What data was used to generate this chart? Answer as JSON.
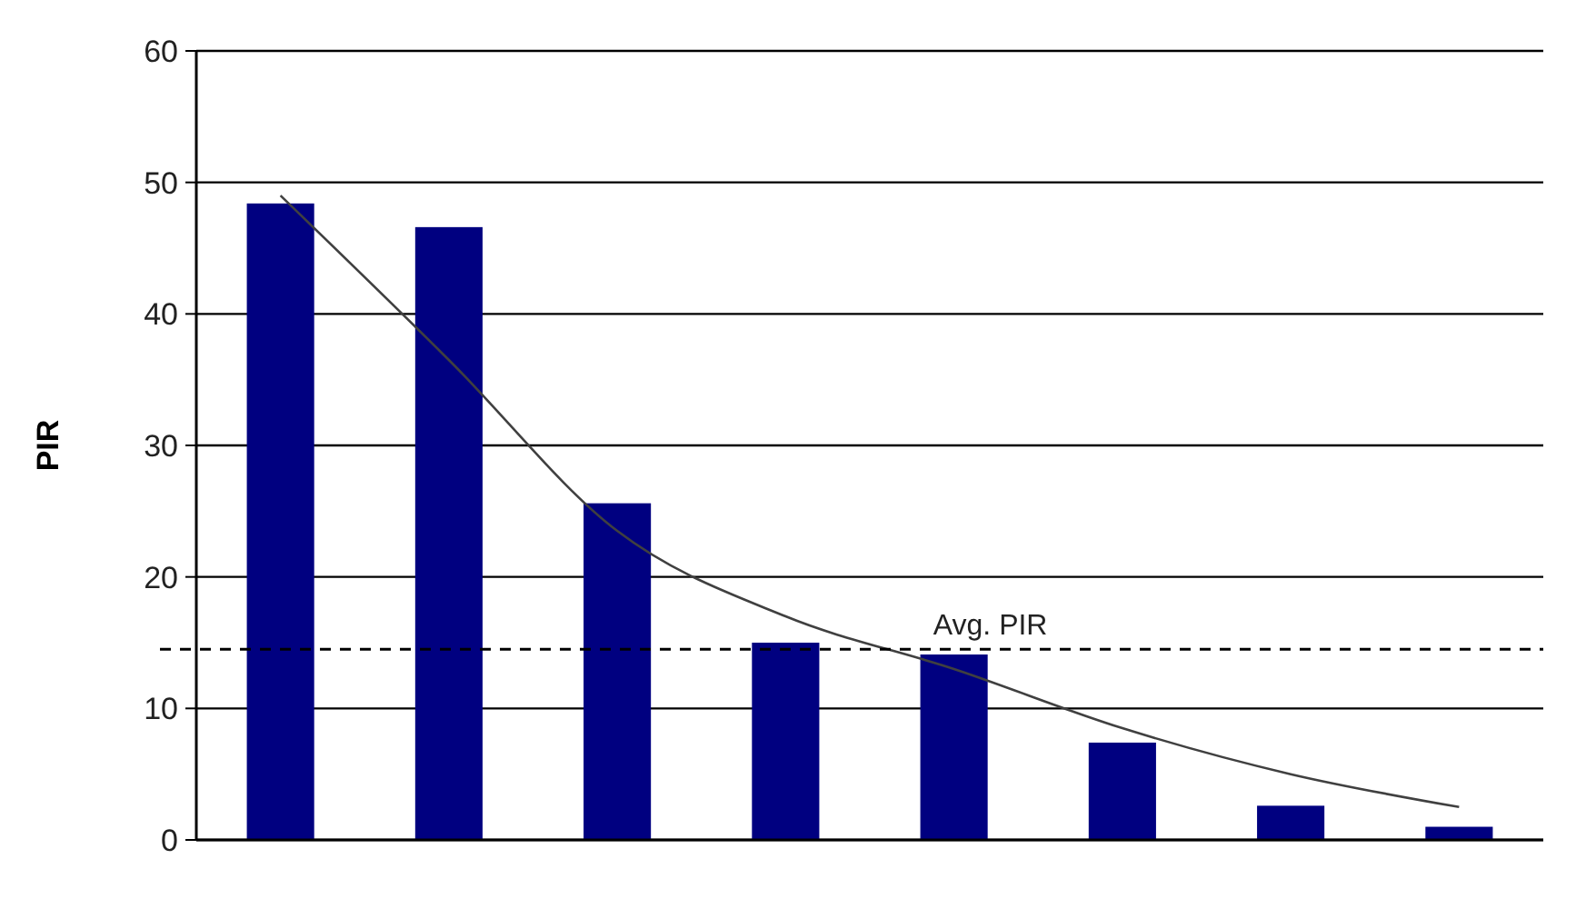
{
  "chart_data": {
    "type": "bar",
    "ylabel": "PIR",
    "categories": [
      null,
      null,
      null,
      null,
      null,
      null,
      null,
      null
    ],
    "series": [
      {
        "color": "#000080",
        "values": [
          48.4,
          46.6,
          25.6,
          15,
          14.1,
          7.4,
          2.6,
          1.0
        ]
      },
      {
        "type": "line",
        "color": "#404040",
        "values": [
          49,
          36.5,
          23.5,
          17,
          13,
          8.5,
          5,
          2.5
        ],
        "marker": "none"
      }
    ],
    "ylim": [
      0,
      60
    ],
    "yticks": [
      0,
      10,
      20,
      30,
      40,
      50,
      60
    ],
    "grid": "y",
    "ref_lines": [
      {
        "axis": "y",
        "value": 14.5,
        "label": "Avg. PIR",
        "line_style": "dashed",
        "color": "#000000"
      }
    ]
  }
}
